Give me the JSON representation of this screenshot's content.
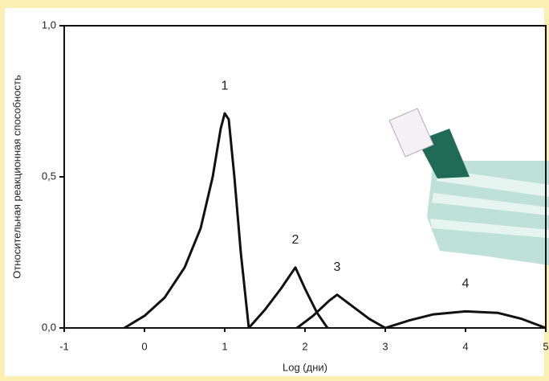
{
  "chart_data": {
    "type": "line",
    "x_label": "Log (дни)",
    "y_label": "Относительная реакционная способность",
    "xlim": [
      -1,
      5
    ],
    "xticks": [
      -1,
      0,
      1,
      2,
      3,
      4,
      5
    ],
    "ylim": [
      0,
      1
    ],
    "yticks": [
      {
        "value": 0,
        "label": "0,0"
      },
      {
        "value": 0.5,
        "label": "0,5"
      },
      {
        "value": 1,
        "label": "1,0"
      }
    ],
    "series": [
      {
        "name": "1",
        "color": "#111111",
        "x": [
          -0.25,
          0,
          0.25,
          0.5,
          0.7,
          0.85,
          0.95,
          1.0,
          1.05,
          1.12,
          1.2,
          1.3
        ],
        "values": [
          0,
          0.04,
          0.1,
          0.2,
          0.33,
          0.5,
          0.66,
          0.71,
          0.69,
          0.5,
          0.25,
          0
        ]
      },
      {
        "name": "2",
        "color": "#111111",
        "x": [
          1.3,
          1.5,
          1.7,
          1.88,
          2.0,
          2.15,
          2.28
        ],
        "values": [
          0,
          0.06,
          0.13,
          0.2,
          0.13,
          0.05,
          0
        ]
      },
      {
        "name": "3",
        "color": "#111111",
        "x": [
          1.9,
          2.1,
          2.3,
          2.4,
          2.6,
          2.8,
          3.0
        ],
        "values": [
          0,
          0.04,
          0.09,
          0.11,
          0.07,
          0.03,
          0
        ]
      },
      {
        "name": "4",
        "color": "#111111",
        "x": [
          3.0,
          3.3,
          3.6,
          4.0,
          4.4,
          4.7,
          5.0
        ],
        "values": [
          0,
          0.025,
          0.045,
          0.055,
          0.05,
          0.03,
          0
        ]
      }
    ]
  }
}
